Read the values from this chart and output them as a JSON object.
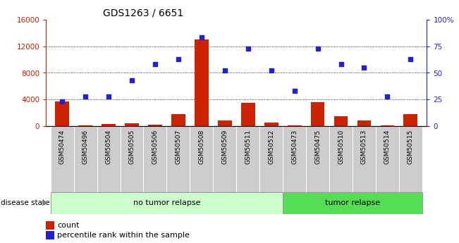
{
  "title": "GDS1263 / 6651",
  "samples": [
    "GSM50474",
    "GSM50496",
    "GSM50504",
    "GSM50505",
    "GSM50506",
    "GSM50507",
    "GSM50508",
    "GSM50509",
    "GSM50511",
    "GSM50512",
    "GSM50473",
    "GSM50475",
    "GSM50510",
    "GSM50513",
    "GSM50514",
    "GSM50515"
  ],
  "counts": [
    3700,
    200,
    400,
    500,
    300,
    1800,
    13000,
    900,
    3500,
    600,
    200,
    3600,
    1500,
    900,
    200,
    1800
  ],
  "percentiles": [
    23,
    28,
    28,
    43,
    58,
    63,
    83,
    52,
    73,
    52,
    33,
    73,
    58,
    55,
    28,
    63
  ],
  "no_tumor_count": 10,
  "tumor_count": 6,
  "ylim_left": [
    0,
    16000
  ],
  "ylim_right": [
    0,
    100
  ],
  "yticks_left": [
    0,
    4000,
    8000,
    12000,
    16000
  ],
  "yticks_right": [
    0,
    25,
    50,
    75,
    100
  ],
  "bar_color": "#cc2200",
  "dot_color": "#2222cc",
  "no_tumor_bg": "#ccffcc",
  "tumor_bg": "#55dd55",
  "sample_bg": "#cccccc",
  "left_axis_color": "#cc2200",
  "right_axis_color": "#2222cc",
  "fig_width": 6.51,
  "fig_height": 3.45,
  "dpi": 100
}
